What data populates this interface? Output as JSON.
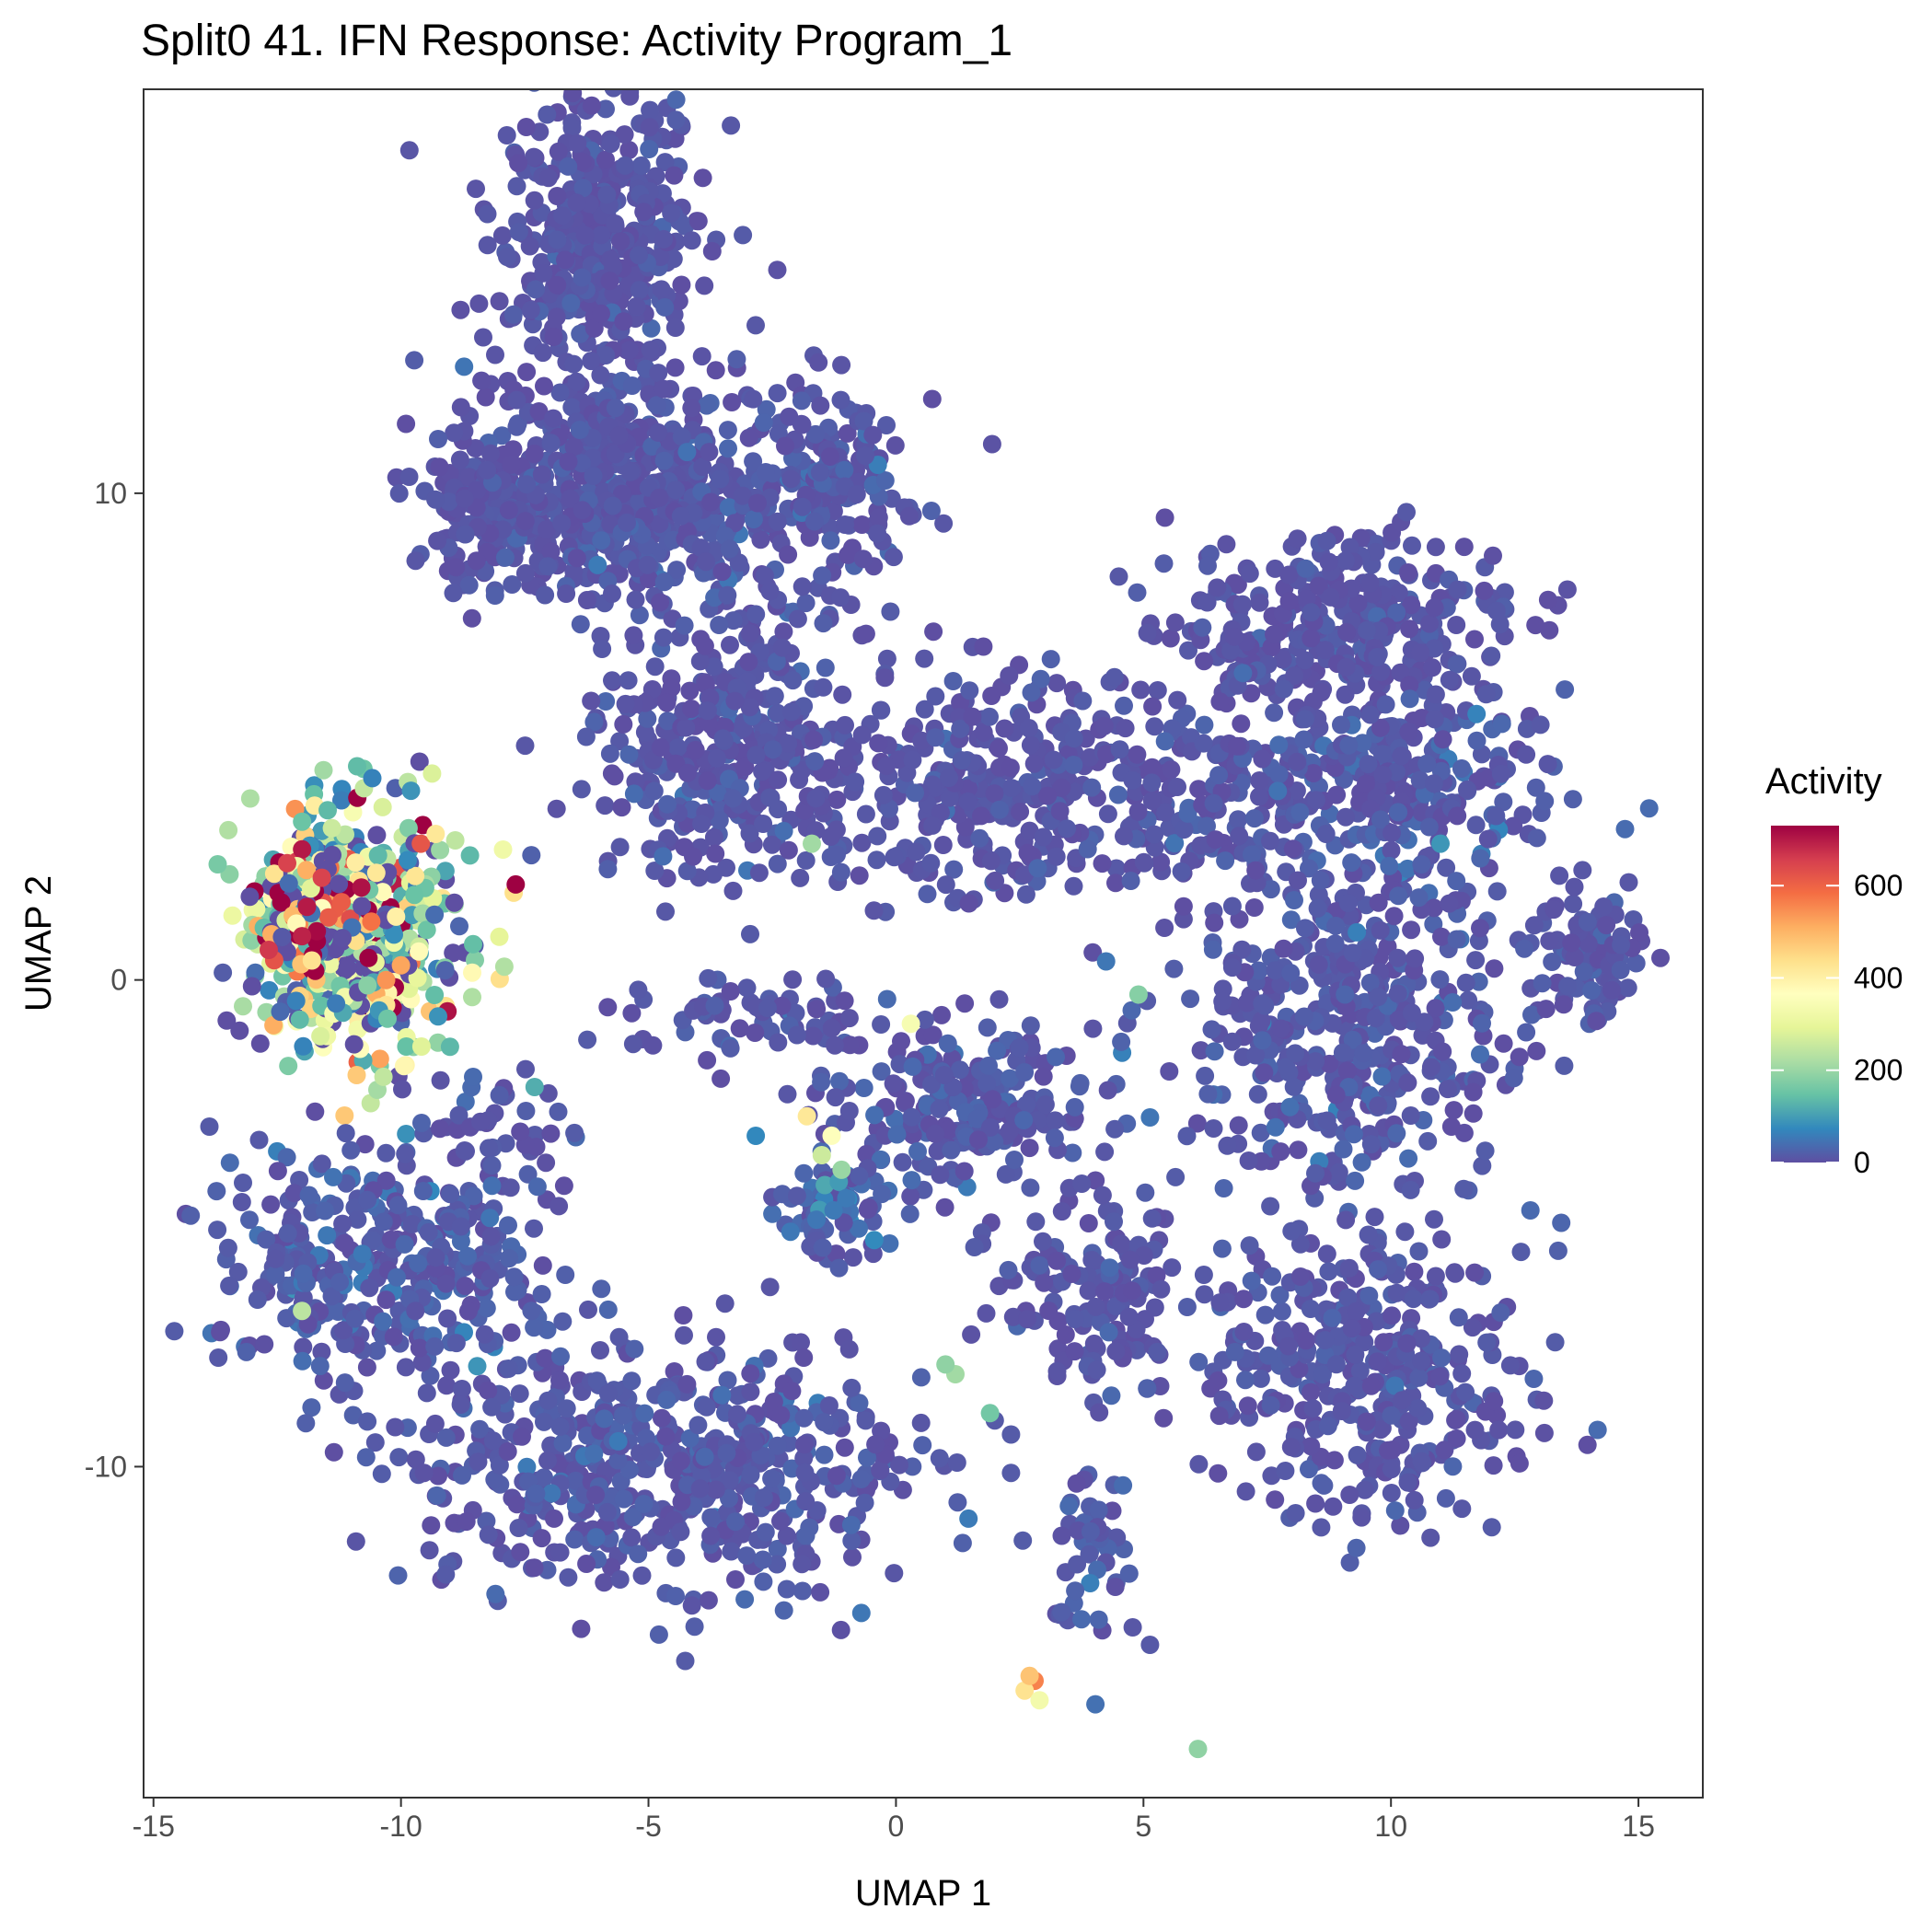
{
  "chart_data": {
    "type": "scatter",
    "title": "Split0 41. IFN Response: Activity Program_1",
    "xlabel": "UMAP 1",
    "ylabel": "UMAP 2",
    "xlim": [
      -15.2,
      16.3
    ],
    "ylim": [
      -16.8,
      18.3
    ],
    "x_ticks": [
      -15,
      -10,
      -5,
      0,
      5,
      10,
      15
    ],
    "y_ticks": [
      -10,
      0,
      10
    ],
    "x_tick_labels": [
      "-15",
      "-10",
      "-5",
      "0",
      "5",
      "10",
      "15"
    ],
    "y_tick_labels": [
      "-10",
      "0",
      "10"
    ],
    "grid": false,
    "legend": {
      "title": "Activity",
      "placement": "right",
      "range": [
        0,
        730
      ],
      "ticks": [
        0,
        200,
        400,
        600
      ],
      "tick_labels": [
        "0",
        "200",
        "400",
        "600"
      ],
      "palette": [
        "#5E4FA2",
        "#3288BD",
        "#66C2A5",
        "#ABDDA4",
        "#E6F598",
        "#FFFFBF",
        "#FEE08B",
        "#FDAE61",
        "#F46D43",
        "#D53E4F",
        "#9E0142"
      ]
    },
    "colors": {
      "background": "#ffffff",
      "panel_border": "#333333",
      "base_point": "#5E4FA2"
    },
    "clusters": [
      {
        "name": "c1",
        "cx": -6.0,
        "cy": 15.2,
        "sx": 1.1,
        "sy": 1.6,
        "n": 420,
        "act": 8
      },
      {
        "name": "c2",
        "cx": -5.5,
        "cy": 10.0,
        "sx": 1.4,
        "sy": 1.2,
        "n": 480,
        "act": 10
      },
      {
        "name": "c3",
        "cx": -8.0,
        "cy": 9.8,
        "sx": 0.8,
        "sy": 1.0,
        "n": 160,
        "act": 8
      },
      {
        "name": "c4",
        "cx": -1.5,
        "cy": 10.2,
        "sx": 0.9,
        "sy": 1.0,
        "n": 160,
        "act": 12
      },
      {
        "name": "c5",
        "cx": -3.5,
        "cy": 4.5,
        "sx": 1.3,
        "sy": 1.2,
        "n": 300,
        "act": 10
      },
      {
        "name": "c6",
        "cx": 2.5,
        "cy": 4.0,
        "sx": 2.4,
        "sy": 1.1,
        "n": 380,
        "act": 8
      },
      {
        "name": "c7",
        "cx": 9.0,
        "cy": 7.2,
        "sx": 1.7,
        "sy": 1.0,
        "n": 330,
        "act": 8
      },
      {
        "name": "c8",
        "cx": 9.5,
        "cy": 3.8,
        "sx": 2.0,
        "sy": 1.0,
        "n": 320,
        "act": 14
      },
      {
        "name": "c9",
        "cx": 9.0,
        "cy": -1.0,
        "sx": 1.6,
        "sy": 1.8,
        "n": 430,
        "act": 12
      },
      {
        "name": "c10",
        "cx": 14.0,
        "cy": 0.6,
        "sx": 0.6,
        "sy": 0.8,
        "n": 90,
        "act": 10
      },
      {
        "name": "c11",
        "cx": -11.0,
        "cy": 1.0,
        "sx": 1.1,
        "sy": 1.3,
        "n": 520,
        "act": 170
      },
      {
        "name": "c12",
        "cx": -11.8,
        "cy": 1.3,
        "sx": 0.5,
        "sy": 0.6,
        "n": 110,
        "act": 400
      },
      {
        "name": "c13",
        "cx": -10.5,
        "cy": -5.8,
        "sx": 1.6,
        "sy": 1.3,
        "n": 360,
        "act": 18
      },
      {
        "name": "c14",
        "cx": -4.5,
        "cy": -10.0,
        "sx": 2.6,
        "sy": 1.3,
        "n": 560,
        "act": 12
      },
      {
        "name": "c15",
        "cx": 1.5,
        "cy": -2.5,
        "sx": 1.3,
        "sy": 0.9,
        "n": 220,
        "act": 12
      },
      {
        "name": "c16",
        "cx": -1.2,
        "cy": -4.7,
        "sx": 0.6,
        "sy": 0.6,
        "n": 80,
        "act": 25
      },
      {
        "name": "c17",
        "cx": 4.0,
        "cy": -6.5,
        "sx": 1.0,
        "sy": 0.9,
        "n": 140,
        "act": 8
      },
      {
        "name": "c18",
        "cx": 9.5,
        "cy": -8.0,
        "sx": 1.6,
        "sy": 1.5,
        "n": 360,
        "act": 10
      },
      {
        "name": "c19",
        "cx": -3.0,
        "cy": -0.7,
        "sx": 1.6,
        "sy": 0.4,
        "n": 70,
        "act": 10
      },
      {
        "name": "c20",
        "cx": 4.0,
        "cy": -11.5,
        "sx": 0.4,
        "sy": 1.0,
        "n": 50,
        "act": 15
      },
      {
        "name": "c21",
        "cx": -2.7,
        "cy": 7.8,
        "sx": 1.5,
        "sy": 1.2,
        "n": 90,
        "act": 10
      },
      {
        "name": "c22",
        "cx": -8.2,
        "cy": -3.0,
        "sx": 0.9,
        "sy": 0.5,
        "n": 40,
        "act": 10
      }
    ],
    "highlights": [
      {
        "x": -12.3,
        "y": 2.4,
        "v": 650
      },
      {
        "x": -11.9,
        "y": 1.5,
        "v": 700
      },
      {
        "x": -11.7,
        "y": 0.8,
        "v": 730
      },
      {
        "x": -11.7,
        "y": 1.0,
        "v": 720
      },
      {
        "x": -10.8,
        "y": 1.9,
        "v": 710
      },
      {
        "x": -12.0,
        "y": 0.9,
        "v": 690
      },
      {
        "x": -11.6,
        "y": 2.1,
        "v": 650
      },
      {
        "x": -9.6,
        "y": 2.8,
        "v": 620
      },
      {
        "x": -11.2,
        "y": 1.6,
        "v": 610
      },
      {
        "x": -10.6,
        "y": 1.2,
        "v": 580
      },
      {
        "x": -10.3,
        "y": 0.0,
        "v": 540
      },
      {
        "x": -10.0,
        "y": 0.3,
        "v": 520
      },
      {
        "x": -9.3,
        "y": 3.0,
        "v": 420
      },
      {
        "x": -10.5,
        "y": 2.2,
        "v": 420
      },
      {
        "x": -11.8,
        "y": 0.4,
        "v": 430
      },
      {
        "x": -10.1,
        "y": 1.3,
        "v": 400
      },
      {
        "x": 2.8,
        "y": -14.4,
        "v": 560
      },
      {
        "x": 2.6,
        "y": -14.6,
        "v": 430
      },
      {
        "x": 2.9,
        "y": -14.8,
        "v": 330
      },
      {
        "x": 2.7,
        "y": -14.3,
        "v": 480
      },
      {
        "x": -1.8,
        "y": -2.8,
        "v": 420
      },
      {
        "x": -1.3,
        "y": -3.2,
        "v": 360
      },
      {
        "x": -1.5,
        "y": -3.6,
        "v": 260
      },
      {
        "x": -1.1,
        "y": -3.9,
        "v": 200
      },
      {
        "x": 0.3,
        "y": -0.9,
        "v": 340
      },
      {
        "x": -12.0,
        "y": -6.8,
        "v": 240
      },
      {
        "x": 1.2,
        "y": -8.1,
        "v": 210
      },
      {
        "x": 1.0,
        "y": -7.9,
        "v": 190
      },
      {
        "x": 1.9,
        "y": -8.9,
        "v": 160
      },
      {
        "x": -1.7,
        "y": 2.8,
        "v": 210
      },
      {
        "x": 4.9,
        "y": -0.3,
        "v": 180
      },
      {
        "x": 6.1,
        "y": -15.8,
        "v": 190
      },
      {
        "x": -7.3,
        "y": -2.2,
        "v": 120
      },
      {
        "x": 11.0,
        "y": 2.8,
        "v": 90
      }
    ]
  }
}
